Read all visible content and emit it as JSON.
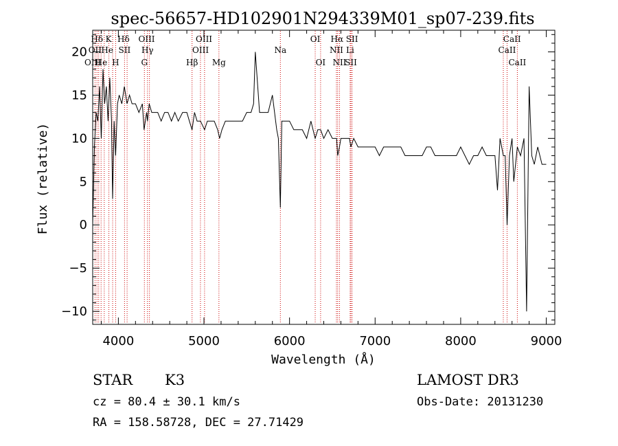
{
  "chart_data": {
    "type": "line",
    "title": "spec-56657-HD102901N294339M01_sp07-239.fits",
    "xlabel": "Wavelength (Å)",
    "ylabel": "Flux (relative)",
    "xlim": [
      3700,
      9100
    ],
    "ylim": [
      -11.5,
      22.5
    ],
    "xticks": [
      4000,
      5000,
      6000,
      7000,
      8000,
      9000
    ],
    "yticks": [
      -10,
      -5,
      0,
      5,
      10,
      15,
      20
    ],
    "xtick_labels": [
      "4000",
      "5000",
      "6000",
      "7000",
      "8000",
      "9000"
    ],
    "ytick_labels": [
      "−10",
      "−5",
      "0",
      "5",
      "10",
      "15",
      "20"
    ],
    "series": [
      {
        "name": "flux",
        "x": [
          3700,
          3720,
          3740,
          3760,
          3780,
          3800,
          3820,
          3840,
          3860,
          3880,
          3900,
          3920,
          3933,
          3950,
          3968,
          3990,
          4010,
          4040,
          4070,
          4101,
          4130,
          4160,
          4200,
          4240,
          4280,
          4300,
          4330,
          4340,
          4360,
          4390,
          4420,
          4460,
          4500,
          4540,
          4580,
          4620,
          4660,
          4700,
          4750,
          4800,
          4830,
          4861,
          4890,
          4920,
          4960,
          5007,
          5040,
          5080,
          5120,
          5160,
          5183,
          5210,
          5250,
          5300,
          5350,
          5400,
          5450,
          5500,
          5550,
          5580,
          5600,
          5650,
          5700,
          5750,
          5800,
          5850,
          5870,
          5893,
          5910,
          5950,
          6000,
          6050,
          6100,
          6150,
          6200,
          6250,
          6300,
          6330,
          6363,
          6400,
          6450,
          6500,
          6550,
          6563,
          6584,
          6600,
          6650,
          6700,
          6717,
          6750,
          6800,
          6850,
          6900,
          6950,
          7000,
          7050,
          7100,
          7150,
          7200,
          7250,
          7300,
          7350,
          7400,
          7450,
          7500,
          7550,
          7600,
          7650,
          7700,
          7750,
          7800,
          7850,
          7900,
          7950,
          8000,
          8050,
          8100,
          8150,
          8200,
          8250,
          8300,
          8350,
          8400,
          8430,
          8460,
          8498,
          8520,
          8542,
          8570,
          8600,
          8620,
          8662,
          8700,
          8740,
          8770,
          8800,
          8830,
          8860,
          8900,
          8950,
          9000
        ],
        "y": [
          0,
          9,
          13,
          12,
          16,
          10,
          18,
          14,
          16,
          12,
          17,
          12,
          3,
          12,
          8,
          14,
          15,
          14,
          16,
          14,
          15,
          14,
          14,
          13,
          14,
          11,
          13,
          12,
          14,
          13,
          13,
          13,
          12,
          13,
          13,
          12,
          13,
          12,
          13,
          13,
          12,
          11,
          13,
          12,
          12,
          11,
          12,
          12,
          12,
          11,
          10,
          11,
          12,
          12,
          12,
          12,
          12,
          13,
          13,
          14,
          20,
          13,
          13,
          13,
          15,
          11,
          10,
          2,
          12,
          12,
          12,
          11,
          11,
          11,
          10,
          12,
          10,
          11,
          11,
          10,
          11,
          10,
          10,
          8,
          9,
          10,
          10,
          10,
          9,
          10,
          9,
          9,
          9,
          9,
          9,
          8,
          9,
          9,
          9,
          9,
          9,
          8,
          8,
          8,
          8,
          8,
          9,
          9,
          8,
          8,
          8,
          8,
          8,
          8,
          9,
          8,
          7,
          8,
          8,
          9,
          8,
          8,
          8,
          4,
          10,
          8,
          8,
          0,
          8,
          10,
          5,
          9,
          8,
          10,
          -10,
          16,
          8,
          7,
          9,
          7,
          7
        ]
      }
    ],
    "line_labels": [
      {
        "name": "Hd",
        "text": "Hδ",
        "x": 3750,
        "row": 1
      },
      {
        "name": "K",
        "text": "K",
        "x": 3885,
        "row": 1
      },
      {
        "name": "Hd2",
        "text": "Hδ",
        "x": 4060,
        "row": 1
      },
      {
        "name": "OIII-a",
        "text": "OIII",
        "x": 4330,
        "row": 1
      },
      {
        "name": "OIII-b",
        "text": "OIII",
        "x": 5000,
        "row": 1
      },
      {
        "name": "OI-a",
        "text": "OI",
        "x": 6300,
        "row": 1
      },
      {
        "name": "Ha",
        "text": "Hα",
        "x": 6555,
        "row": 1
      },
      {
        "name": "SII-a",
        "text": "SII",
        "x": 6730,
        "row": 1
      },
      {
        "name": "CaII-a",
        "text": "CaII",
        "x": 8600,
        "row": 1
      },
      {
        "name": "OII",
        "text": "OII",
        "x": 3727,
        "row": 2
      },
      {
        "name": "He",
        "text": "He",
        "x": 3870,
        "row": 2
      },
      {
        "name": "SII-b",
        "text": "SII",
        "x": 4072,
        "row": 2
      },
      {
        "name": "Hg",
        "text": "Hγ",
        "x": 4340,
        "row": 2
      },
      {
        "name": "OIII-c",
        "text": "OIII",
        "x": 4960,
        "row": 2
      },
      {
        "name": "Na",
        "text": "Na",
        "x": 5893,
        "row": 2
      },
      {
        "name": "NII-a",
        "text": "NII",
        "x": 6548,
        "row": 2
      },
      {
        "name": "Li",
        "text": "Li",
        "x": 6708,
        "row": 2
      },
      {
        "name": "CaII-b",
        "text": "CaII",
        "x": 8542,
        "row": 2
      },
      {
        "name": "OIII-d",
        "text": "OIII",
        "x": 3700,
        "row": 3
      },
      {
        "name": "He-c",
        "text": "He",
        "x": 3800,
        "row": 3
      },
      {
        "name": "H",
        "text": "H",
        "x": 3968,
        "row": 3
      },
      {
        "name": "G",
        "text": "G",
        "x": 4304,
        "row": 3
      },
      {
        "name": "Hb",
        "text": "Hβ",
        "x": 4861,
        "row": 3
      },
      {
        "name": "Mg",
        "text": "Mg",
        "x": 5175,
        "row": 3
      },
      {
        "name": "OI-b",
        "text": "OI",
        "x": 6363,
        "row": 3
      },
      {
        "name": "NII-b",
        "text": "NII",
        "x": 6584,
        "row": 3
      },
      {
        "name": "SII-c",
        "text": "SII",
        "x": 6717,
        "row": 3
      },
      {
        "name": "CaII-c",
        "text": "CaII",
        "x": 8662,
        "row": 3
      }
    ],
    "line_markers": [
      3727,
      3750,
      3770,
      3798,
      3835,
      3889,
      3933,
      3968,
      4072,
      4102,
      4304,
      4340,
      4363,
      4861,
      4959,
      5007,
      5175,
      5893,
      6300,
      6363,
      6548,
      6563,
      6584,
      6708,
      6717,
      6731,
      8498,
      8542,
      8662
    ],
    "marker_color": "#cc0000",
    "series_color": "#000000"
  },
  "info": {
    "object_type": "STAR",
    "subclass": "K3",
    "survey": "LAMOST DR3",
    "cz": "cz = 80.4 ± 30.1 km/s",
    "obs_date": "Obs-Date: 20131230",
    "coords": "RA = 158.58728, DEC =  27.71429"
  }
}
